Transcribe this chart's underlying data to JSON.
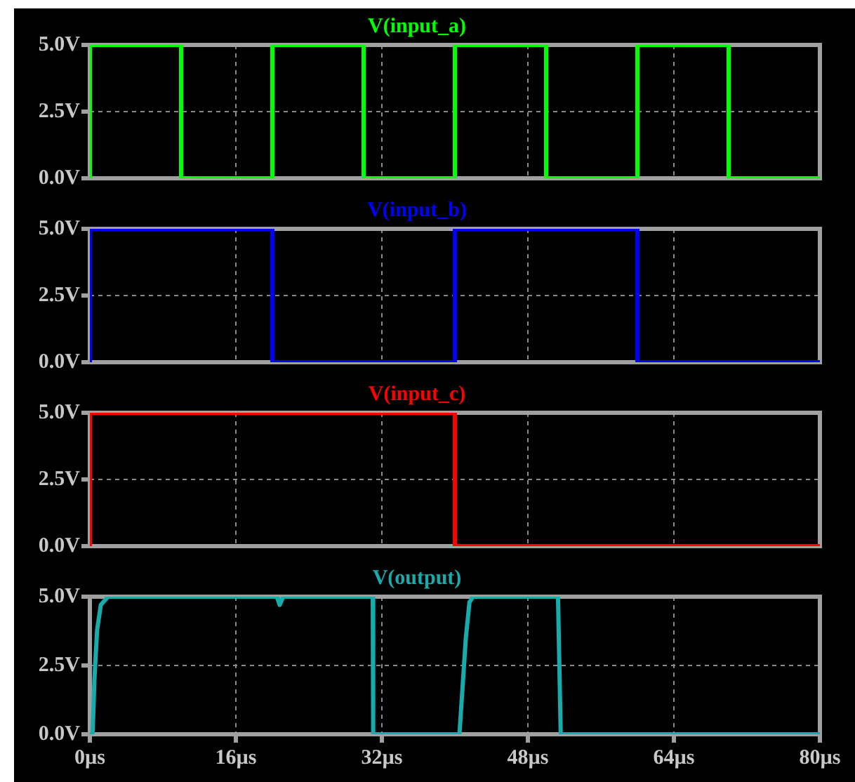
{
  "chart_data": [
    {
      "type": "step",
      "title": "V(input_a)",
      "x": [
        0,
        0,
        10,
        20,
        30,
        40,
        50,
        60,
        70,
        80
      ],
      "series": [
        {
          "color": "#00ff00",
          "values": [
            0,
            5,
            0,
            5,
            0,
            5,
            0,
            5,
            0,
            0
          ]
        }
      ],
      "xlim": [
        0,
        80
      ],
      "xticks": [
        {
          "value": 0,
          "label": null
        },
        {
          "value": 16,
          "label": null
        },
        {
          "value": 32,
          "label": null
        },
        {
          "value": 48,
          "label": null
        },
        {
          "value": 64,
          "label": null
        },
        {
          "value": 80,
          "label": null
        }
      ],
      "ylim": [
        0,
        5
      ],
      "yticks": [
        {
          "value": 0,
          "label": "0.0V"
        },
        {
          "value": 2.5,
          "label": "2.5V"
        },
        {
          "value": 5,
          "label": "5.0V"
        }
      ],
      "grid": true,
      "tick_labels": "y",
      "marker": "none"
    },
    {
      "type": "step",
      "title": "V(input_b)",
      "x": [
        0,
        0,
        20,
        40,
        60,
        80
      ],
      "series": [
        {
          "color": "#0000ff",
          "values": [
            0,
            5,
            0,
            5,
            0,
            0
          ]
        }
      ],
      "xlim": [
        0,
        80
      ],
      "xticks": [
        {
          "value": 0,
          "label": null
        },
        {
          "value": 16,
          "label": null
        },
        {
          "value": 32,
          "label": null
        },
        {
          "value": 48,
          "label": null
        },
        {
          "value": 64,
          "label": null
        },
        {
          "value": 80,
          "label": null
        }
      ],
      "ylim": [
        0,
        5
      ],
      "yticks": [
        {
          "value": 0,
          "label": "0.0V"
        },
        {
          "value": 2.5,
          "label": "2.5V"
        },
        {
          "value": 5,
          "label": "5.0V"
        }
      ],
      "grid": true,
      "tick_labels": "y",
      "marker": "none"
    },
    {
      "type": "step",
      "title": "V(input_c)",
      "x": [
        0,
        0,
        40,
        80
      ],
      "series": [
        {
          "color": "#ff0000",
          "values": [
            0,
            5,
            0,
            0
          ]
        }
      ],
      "xlim": [
        0,
        80
      ],
      "xticks": [
        {
          "value": 0,
          "label": null
        },
        {
          "value": 16,
          "label": null
        },
        {
          "value": 32,
          "label": null
        },
        {
          "value": 48,
          "label": null
        },
        {
          "value": 64,
          "label": null
        },
        {
          "value": 80,
          "label": null
        }
      ],
      "ylim": [
        0,
        5
      ],
      "yticks": [
        {
          "value": 0,
          "label": "0.0V"
        },
        {
          "value": 2.5,
          "label": "2.5V"
        },
        {
          "value": 5,
          "label": "5.0V"
        }
      ],
      "grid": true,
      "tick_labels": "y",
      "marker": "none"
    },
    {
      "type": "line",
      "title": "V(output)",
      "x": [
        0,
        0.3,
        0.5,
        0.8,
        1.2,
        2,
        20.5,
        20.8,
        21.2,
        31,
        31.05,
        40.5,
        40.8,
        41.2,
        41.6,
        42,
        51.3,
        51.6,
        80
      ],
      "series": [
        {
          "color": "#17abab",
          "values": [
            0,
            0,
            2,
            3.8,
            4.7,
            5,
            5,
            4.7,
            5,
            5,
            0,
            0,
            1.5,
            3.5,
            4.8,
            5,
            5,
            0,
            0
          ]
        }
      ],
      "xlim": [
        0,
        80
      ],
      "xticks": [
        {
          "value": 0,
          "label": "0µs"
        },
        {
          "value": 16,
          "label": "16µs"
        },
        {
          "value": 32,
          "label": "32µs"
        },
        {
          "value": 48,
          "label": "48µs"
        },
        {
          "value": 64,
          "label": "64µs"
        },
        {
          "value": 80,
          "label": "80µs"
        }
      ],
      "ylim": [
        0,
        5
      ],
      "yticks": [
        {
          "value": 0,
          "label": "0.0V"
        },
        {
          "value": 2.5,
          "label": "2.5V"
        },
        {
          "value": 5,
          "label": "5.0V"
        }
      ],
      "grid": true,
      "marker": "none"
    }
  ]
}
